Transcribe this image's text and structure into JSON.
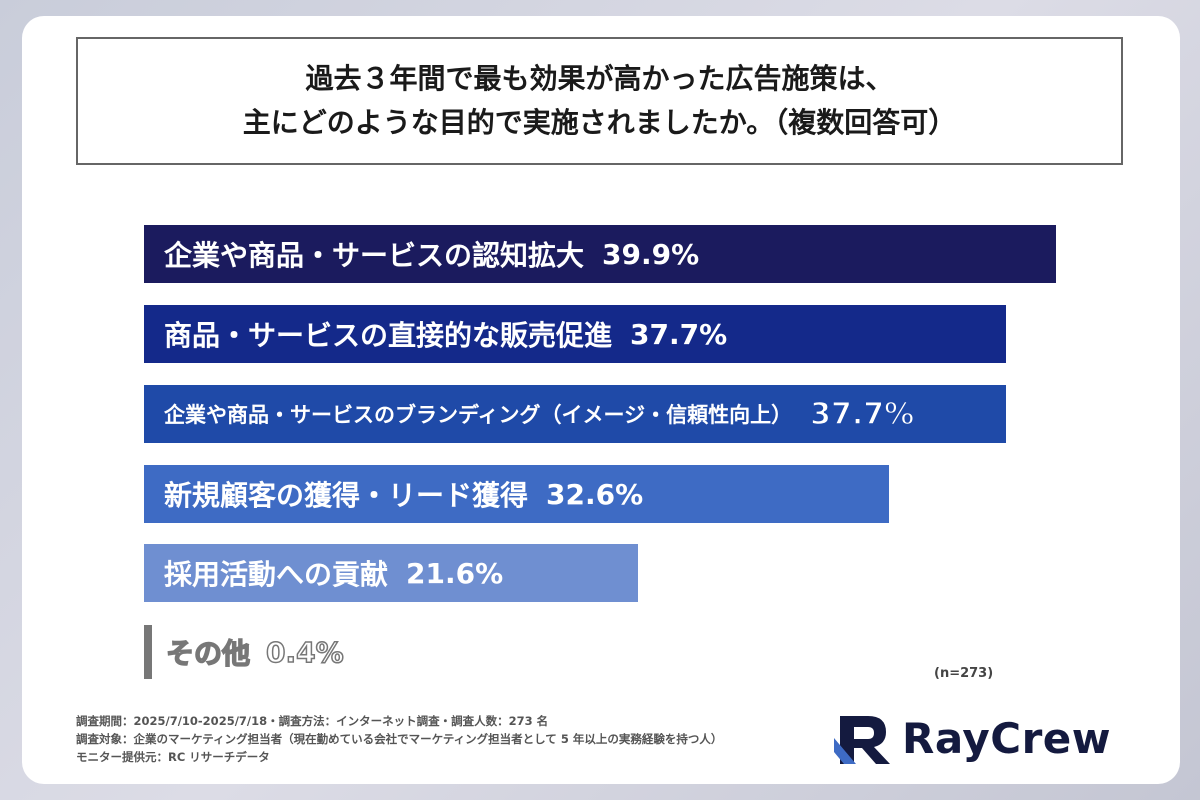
{
  "title": {
    "line1": "過去３年間で最も効果が高かった広告施策は、",
    "line2": "主にどのような目的で実施されましたか。（複数回答可）"
  },
  "chart_data": {
    "type": "bar",
    "orientation": "horizontal",
    "categories": [
      "企業や商品・サービスの認知拡大",
      "商品・サービスの直接的な販売促進",
      "企業や商品・サービスのブランディング（イメージ・信頼性向上）",
      "新規顧客の獲得・リード獲得",
      "採用活動への貢献",
      "その他"
    ],
    "values": [
      39.9,
      37.7,
      37.7,
      32.6,
      21.6,
      0.4
    ],
    "value_labels": [
      "39.9%",
      "37.7%",
      "37.7%",
      "32.6%",
      "21.6%",
      "0.4%"
    ],
    "colors": [
      "#1b1b5e",
      "#14298a",
      "#1f4aa8",
      "#3e6bc4",
      "#6f8fd1",
      "#777777"
    ],
    "xlim": [
      0,
      40
    ],
    "grid": false,
    "title": "",
    "xlabel": "",
    "ylabel": ""
  },
  "n_note": "(n=273)",
  "footer": {
    "line1": "調査期間：2025/7/10-2025/7/18・調査方法：インターネット調査・調査人数：273 名",
    "line2": "調査対象：企業のマーケティング担当者（現在勤めている会社でマーケティング担当者として 5 年以上の実務経験を持つ人）",
    "line3": "モニター提供元：RC リサーチデータ"
  },
  "logo": {
    "text": "RayCrew",
    "mark_color": "#141a3f",
    "mark_accent": "#3e6bc4"
  }
}
